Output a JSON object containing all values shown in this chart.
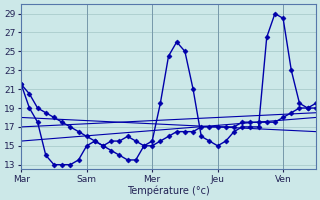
{
  "background_color": "#cce8e8",
  "grid_color": "#aacccc",
  "line_color": "#0000aa",
  "xlabel": "Température (°c)",
  "x_tick_labels": [
    "Mar",
    "Sam",
    "Mer",
    "Jeu",
    "Ven"
  ],
  "x_tick_positions": [
    0,
    32,
    64,
    96,
    128
  ],
  "ylim": [
    12.5,
    30
  ],
  "yticks": [
    13,
    15,
    17,
    19,
    21,
    23,
    25,
    27,
    29
  ],
  "xlim": [
    0,
    144
  ],
  "wavy1_x": [
    0,
    4,
    8,
    12,
    16,
    20,
    24,
    28,
    32,
    36,
    40,
    44,
    48,
    52,
    56,
    60,
    64,
    68,
    72,
    76,
    80,
    84,
    88,
    92,
    96,
    100,
    104,
    108,
    112,
    116,
    120,
    124,
    128,
    132,
    136,
    140,
    144
  ],
  "wavy1_y": [
    21.5,
    20.5,
    19.0,
    18.5,
    18.0,
    17.5,
    17.0,
    16.5,
    16.0,
    15.5,
    15.0,
    14.5,
    14.0,
    13.5,
    13.5,
    15.0,
    15.5,
    19.5,
    24.5,
    26.0,
    25.0,
    21.0,
    16.0,
    15.5,
    15.0,
    15.5,
    16.5,
    17.0,
    17.0,
    17.0,
    26.5,
    29.0,
    28.5,
    23.0,
    19.5,
    19.0,
    19.0
  ],
  "wavy2_x": [
    0,
    4,
    8,
    12,
    16,
    20,
    24,
    28,
    32,
    36,
    40,
    44,
    48,
    52,
    56,
    60,
    64,
    68,
    72,
    76,
    80,
    84,
    88,
    92,
    96,
    100,
    104,
    108,
    112,
    116,
    120,
    124,
    128,
    132,
    136,
    140,
    144
  ],
  "wavy2_y": [
    21.5,
    19.0,
    17.5,
    14.0,
    13.0,
    13.0,
    13.0,
    13.5,
    15.0,
    15.5,
    15.0,
    15.5,
    15.5,
    16.0,
    15.5,
    15.0,
    15.0,
    15.5,
    16.0,
    16.5,
    16.5,
    16.5,
    17.0,
    17.0,
    17.0,
    17.0,
    17.0,
    17.5,
    17.5,
    17.5,
    17.5,
    17.5,
    18.0,
    18.5,
    19.0,
    19.0,
    19.5
  ],
  "trend1_x": [
    0,
    144
  ],
  "trend1_y": [
    18.0,
    16.5
  ],
  "trend2_x": [
    0,
    144
  ],
  "trend2_y": [
    17.0,
    18.5
  ],
  "trend3_x": [
    0,
    144
  ],
  "trend3_y": [
    15.5,
    18.0
  ]
}
